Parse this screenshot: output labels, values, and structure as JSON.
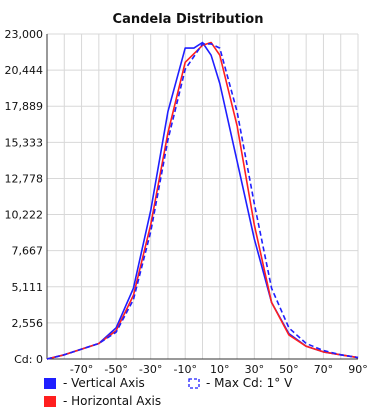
{
  "chart_data": {
    "type": "line",
    "title": "Candela Distribution",
    "xlabel": "",
    "ylabel": "",
    "xlim": [
      -90,
      90
    ],
    "ylim": [
      0,
      23000
    ],
    "x_ticks": [
      "-70°",
      "-50°",
      "-30°",
      "-10°",
      "10°",
      "30°",
      "50°",
      "70°",
      "90°"
    ],
    "x_tick_values": [
      -70,
      -50,
      -30,
      -10,
      10,
      30,
      50,
      70,
      90
    ],
    "y_ticks": [
      "Cd: 0",
      "2,556",
      "5,111",
      "7,667",
      "10,222",
      "12,778",
      "15,333",
      "17,889",
      "20,444",
      "23,000"
    ],
    "y_tick_values": [
      0,
      2556,
      5111,
      7667,
      10222,
      12778,
      15333,
      17889,
      20444,
      23000
    ],
    "grid": true,
    "legend_placement": "bottom",
    "series": [
      {
        "name": "Vertical Axis",
        "color": "#1f1fff",
        "style": "solid",
        "x": [
          -90,
          -80,
          -70,
          -60,
          -50,
          -40,
          -30,
          -20,
          -10,
          -5,
          0,
          5,
          10,
          20,
          30,
          40,
          50,
          60,
          70,
          80,
          90
        ],
        "values": [
          0,
          300,
          700,
          1100,
          2200,
          5000,
          10500,
          17500,
          22000,
          22000,
          22400,
          21500,
          19500,
          14000,
          8500,
          4000,
          1800,
          900,
          500,
          300,
          100
        ]
      },
      {
        "name": "Horizontal Axis",
        "color": "#ff1f1f",
        "style": "solid",
        "x": [
          -90,
          -80,
          -70,
          -60,
          -50,
          -40,
          -30,
          -20,
          -10,
          0,
          5,
          10,
          20,
          30,
          40,
          50,
          60,
          70,
          80,
          90
        ],
        "values": [
          0,
          300,
          700,
          1100,
          2000,
          4500,
          9500,
          16000,
          21000,
          22200,
          22400,
          21500,
          16500,
          9500,
          4000,
          1700,
          900,
          500,
          300,
          100
        ]
      },
      {
        "name": "Max Cd: 1° V",
        "color": "#1f1fff",
        "style": "dashed",
        "x": [
          -90,
          -80,
          -70,
          -60,
          -50,
          -40,
          -30,
          -20,
          -10,
          0,
          5,
          10,
          20,
          30,
          40,
          50,
          60,
          70,
          80,
          90
        ],
        "values": [
          0,
          300,
          700,
          1100,
          1900,
          4200,
          9000,
          15500,
          20500,
          22300,
          22300,
          22000,
          17500,
          11000,
          5000,
          2200,
          1100,
          600,
          300,
          100
        ]
      }
    ],
    "legend": [
      {
        "label": "- Vertical Axis",
        "color": "#1f1fff",
        "swatch": "filled"
      },
      {
        "label": "- Max Cd: 1° V",
        "color": "#1f1fff",
        "swatch": "dashed"
      },
      {
        "label": "- Horizontal Axis",
        "color": "#ff1f1f",
        "swatch": "filled"
      }
    ]
  }
}
